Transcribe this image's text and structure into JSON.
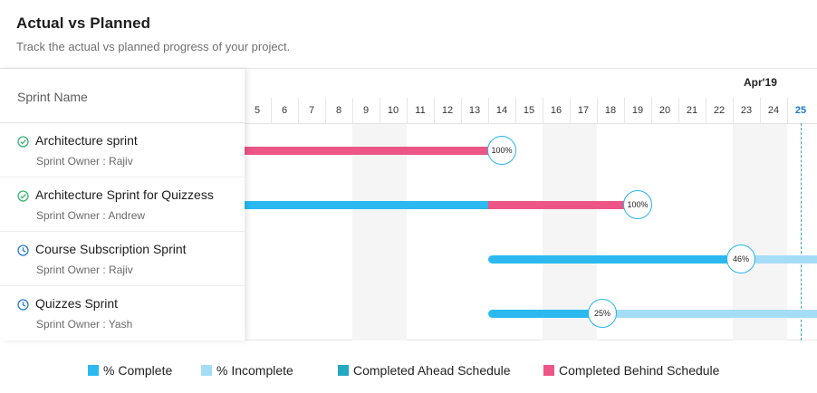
{
  "header": {
    "title": "Actual vs Planned",
    "subtitle": "Track the actual vs planned progress of your project."
  },
  "columns": {
    "sprint_name": "Sprint Name"
  },
  "timeline": {
    "month_label": "Apr'19",
    "days": [
      "5",
      "6",
      "7",
      "8",
      "9",
      "10",
      "11",
      "12",
      "13",
      "14",
      "15",
      "16",
      "17",
      "18",
      "19",
      "20",
      "21",
      "22",
      "23",
      "24",
      "25"
    ],
    "today": "25"
  },
  "sprints": [
    {
      "name": "Architecture sprint",
      "owner": "Sprint Owner : Rajiv",
      "status_icon": "check-circle-icon",
      "progress_label": "100%",
      "progress": 1.0
    },
    {
      "name": "Architecture Sprint for Quizzess",
      "owner": "Sprint Owner : Andrew",
      "status_icon": "check-circle-icon",
      "progress_label": "100%",
      "progress": 1.0
    },
    {
      "name": "Course Subscription Sprint",
      "owner": "Sprint Owner : Rajiv",
      "status_icon": "clock-icon",
      "progress_label": "46%",
      "progress": 0.46
    },
    {
      "name": "Quizzes Sprint",
      "owner": "Sprint Owner : Yash",
      "status_icon": "clock-icon",
      "progress_label": "25%",
      "progress": 0.25
    }
  ],
  "legend": [
    {
      "label": "% Complete",
      "color": "#2bb9f0"
    },
    {
      "label": "% Incomplete",
      "color": "#a6ddf6"
    },
    {
      "label": "Completed Ahead Schedule",
      "color": "#23a9c1"
    },
    {
      "label": "Completed Behind Schedule",
      "color": "#ec5586"
    }
  ],
  "colors": {
    "complete": "#2bb9f0",
    "incomplete": "#a6ddf6",
    "ahead": "#23a9c1",
    "behind": "#ec5586",
    "today_line": "#3aa69a",
    "done_icon": "#3cb371",
    "progress_icon": "#2b7ed0"
  }
}
